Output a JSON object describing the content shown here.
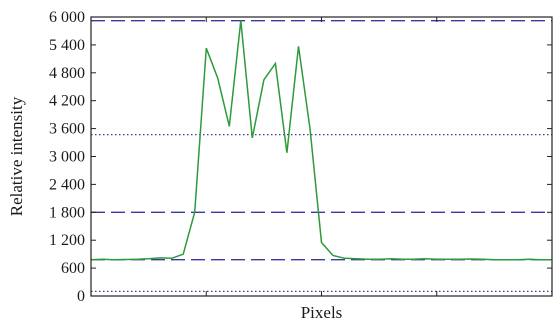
{
  "chart_data": {
    "type": "line",
    "xlabel": "Pixels",
    "ylabel": "Relative intensity",
    "ylim": [
      0,
      6000
    ],
    "xlim": [
      0,
      40
    ],
    "yticks": [
      0,
      600,
      1200,
      1800,
      2400,
      3000,
      3600,
      4200,
      4800,
      5400,
      6000
    ],
    "ytick_labels": [
      "0",
      "600",
      "1 200",
      "1 800",
      "2 400",
      "3 000",
      "3 600",
      "4 200",
      "4 800",
      "5 400",
      "6 000"
    ],
    "xticks": [
      10,
      20,
      30,
      40
    ],
    "grid": false,
    "reference_lines": [
      {
        "y": 5920,
        "style": "dashed"
      },
      {
        "y": 3470,
        "style": "dotted"
      },
      {
        "y": 1800,
        "style": "dashed"
      },
      {
        "y": 780,
        "style": "dashed"
      },
      {
        "y": 100,
        "style": "dotted"
      }
    ],
    "series": [
      {
        "color": "#2e9a3a",
        "x": [
          0,
          1,
          2,
          3,
          4,
          5,
          6,
          7,
          8,
          9,
          10,
          11,
          12,
          13,
          14,
          15,
          16,
          17,
          18,
          19,
          20,
          21,
          22,
          23,
          24,
          25,
          26,
          27,
          28,
          29,
          30,
          31,
          32,
          33,
          34,
          35,
          36,
          37,
          38,
          39,
          40
        ],
        "y": [
          780,
          790,
          780,
          785,
          790,
          800,
          820,
          810,
          900,
          1800,
          5330,
          4680,
          3650,
          5920,
          3400,
          4650,
          5000,
          3080,
          5370,
          3600,
          1150,
          870,
          810,
          800,
          790,
          790,
          800,
          790,
          790,
          800,
          790,
          790,
          790,
          795,
          790,
          780,
          780,
          780,
          790,
          780,
          780
        ]
      }
    ]
  }
}
